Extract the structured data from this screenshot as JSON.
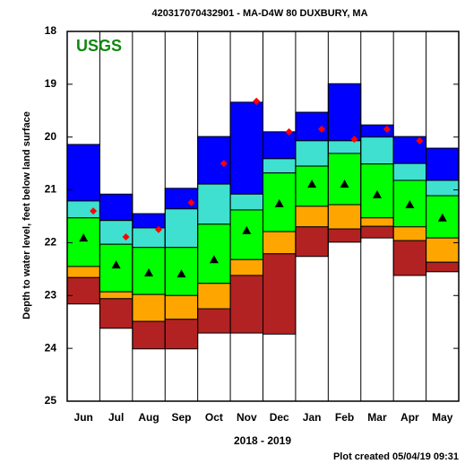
{
  "chart_data": {
    "type": "percentile-bands",
    "title": "420317070432901 - MA-D4W 80 DUXBURY, MA",
    "logo": "USGS",
    "y_label": "Depth to water level, feet below land surface",
    "x_label": "2018 - 2019",
    "footer": "Plot created 05/04/19 09:31",
    "categories": [
      "Jun",
      "Jul",
      "Aug",
      "Sep",
      "Oct",
      "Nov",
      "Dec",
      "Jan",
      "Feb",
      "Mar",
      "Apr",
      "May"
    ],
    "ylim": [
      18,
      25
    ],
    "yticks": [
      18,
      19,
      20,
      21,
      22,
      23,
      24,
      25
    ],
    "y_inverted": true,
    "band_colors": [
      "#0000ff",
      "#40e0d0",
      "#00ff00",
      "#ffa500",
      "#b22222"
    ],
    "boundaries": [
      [
        20.14,
        21.08,
        21.45,
        20.97,
        19.99,
        19.34,
        19.9,
        19.53,
        18.99,
        19.77,
        19.99,
        20.21
      ],
      [
        21.21,
        21.58,
        21.72,
        21.36,
        20.89,
        21.08,
        20.41,
        20.07,
        20.07,
        20.0,
        20.5,
        20.82
      ],
      [
        21.53,
        22.03,
        22.09,
        22.09,
        21.65,
        21.38,
        20.68,
        20.55,
        20.31,
        20.51,
        20.82,
        21.11
      ],
      [
        22.45,
        22.93,
        22.98,
        23.0,
        22.77,
        22.32,
        21.79,
        21.31,
        21.28,
        21.53,
        21.7,
        21.91
      ],
      [
        22.66,
        23.06,
        23.49,
        23.45,
        23.25,
        22.62,
        22.21,
        21.7,
        21.74,
        21.69,
        21.96,
        22.37
      ],
      [
        23.16,
        23.62,
        24.01,
        24.01,
        23.71,
        23.71,
        23.73,
        22.26,
        21.99,
        21.91,
        22.62,
        22.55
      ]
    ],
    "median": {
      "color": "#000000",
      "values": [
        21.91,
        22.42,
        22.57,
        22.59,
        22.32,
        21.77,
        21.26,
        20.89,
        20.89,
        21.09,
        21.28,
        21.53
      ]
    },
    "current": {
      "color": "#ff0000",
      "values": [
        21.4,
        21.89,
        21.75,
        21.24,
        20.5,
        19.32,
        19.9,
        19.85,
        20.04,
        19.85,
        20.07,
        null
      ]
    }
  }
}
